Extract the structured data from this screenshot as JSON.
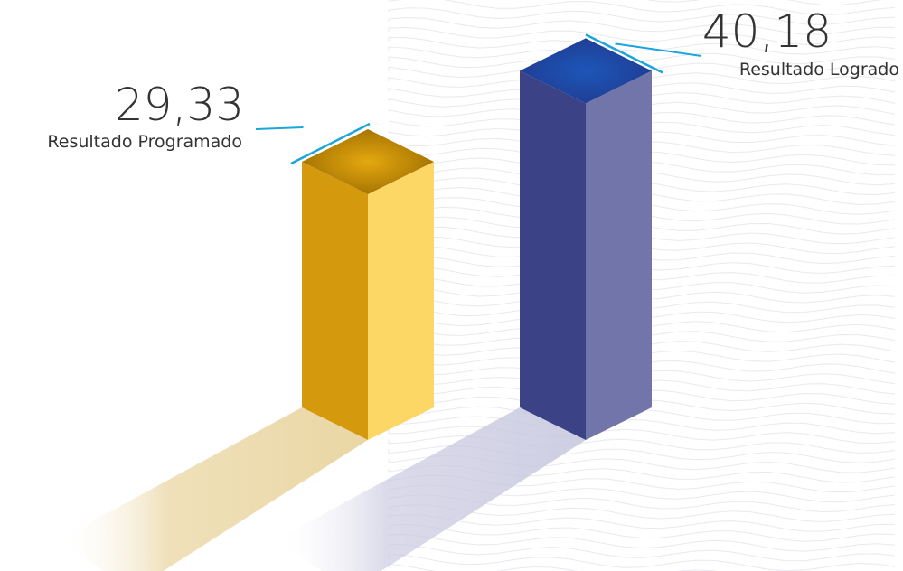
{
  "chart_data": {
    "type": "bar",
    "categories": [
      "Resultado Programado",
      "Resultado Logrado"
    ],
    "values": [
      29.33,
      40.18
    ],
    "value_labels": [
      "29,33",
      "40,18"
    ],
    "series": [
      {
        "values": [
          29.33,
          40.18
        ]
      }
    ],
    "title": "",
    "xlabel": "",
    "ylabel": "",
    "grid": false,
    "legend": "none",
    "style": "3d-isometric"
  },
  "colors": {
    "programado_front": "#d4990c",
    "programado_side": "#fdd765",
    "programado_top": "#9a6a00",
    "programado_shadow": "#e8d29a",
    "logrado_front": "#3b4386",
    "logrado_side": "#7275a9",
    "logrado_top": "#1f3a8f",
    "logrado_shadow": "#c9c9e0",
    "leader_line": "#1aa5dc",
    "text": "#333333"
  }
}
